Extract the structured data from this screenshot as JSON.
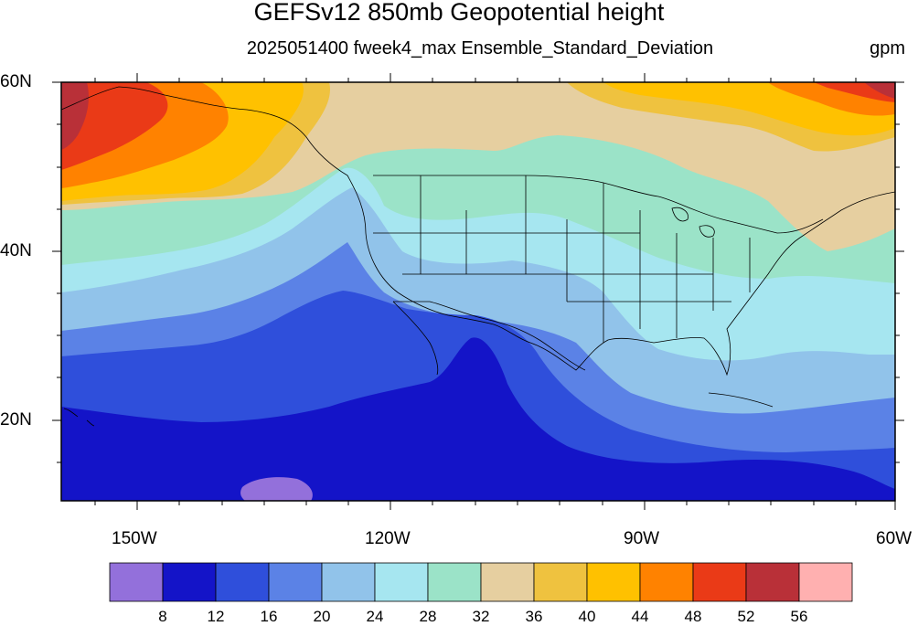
{
  "title": "GEFSv12 850mb Geopotential height",
  "subtitle": "2025051400 fweek4_max Ensemble_Standard_Deviation",
  "units": "gpm",
  "axes": {
    "lat_labels": [
      "60N",
      "40N",
      "20N"
    ],
    "lon_labels": [
      "150W",
      "120W",
      "90W",
      "60W"
    ]
  },
  "colorbar": {
    "labels": [
      "8",
      "12",
      "16",
      "20",
      "24",
      "28",
      "32",
      "36",
      "40",
      "44",
      "48",
      "52",
      "56"
    ],
    "colors": [
      "#9370DB",
      "#1414C8",
      "#2F4FDB",
      "#5B82E6",
      "#91C3EA",
      "#A6E6F0",
      "#9BE3C8",
      "#E6CFA0",
      "#EFC23F",
      "#FFC100",
      "#FF8200",
      "#EA3A17",
      "#B93038",
      "#FFB0B0"
    ]
  },
  "map_colors": {
    "band_below_8": "#9370DB",
    "band_8_12": "#1414C8",
    "band_12_16": "#2F4FDB",
    "band_16_20": "#5B82E6",
    "band_20_24": "#91C3EA",
    "band_24_28": "#A6E6F0",
    "band_28_32": "#9BE3C8",
    "band_32_36": "#E6CFA0",
    "band_36_40": "#EFC23F",
    "band_40_44": "#FFC100",
    "band_44_48": "#FF8200",
    "band_48_52": "#EA3A17",
    "band_52_56": "#B93038"
  }
}
